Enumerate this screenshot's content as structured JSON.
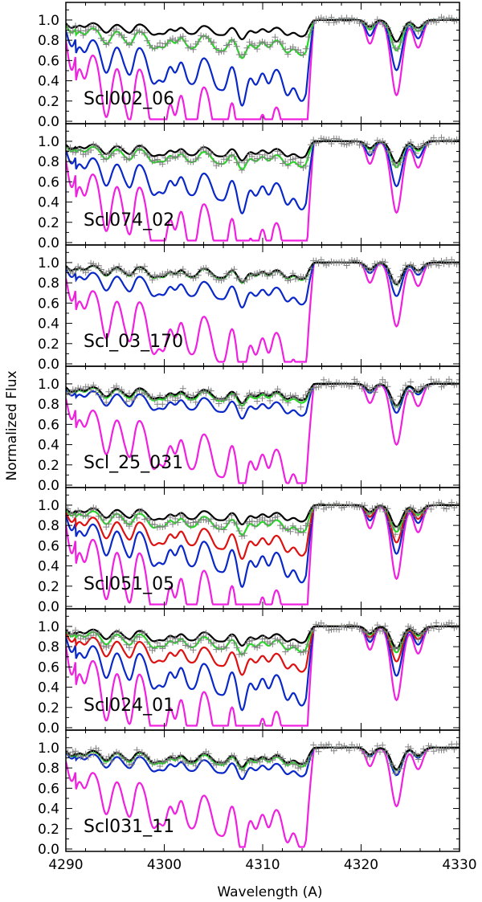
{
  "chart_data": {
    "type": "line",
    "xlabel": "Wavelength (A)",
    "ylabel": "Normalized Flux",
    "xlim": [
      4290,
      4330
    ],
    "ylim": [
      0.0,
      1.15
    ],
    "x_ticks": [
      "4290",
      "4300",
      "4310",
      "4320",
      "4330"
    ],
    "y_ticks": [
      "0.0",
      "0.2",
      "0.4",
      "0.6",
      "0.8",
      "1.0"
    ],
    "series_colors": {
      "observed": "#808080",
      "black": "#000000",
      "green": "#22dd22",
      "red": "#dd1111",
      "blue": "#0a28c8",
      "magenta": "#f020e0"
    },
    "panels": [
      {
        "label": "Scl002_06",
        "green": 0.82,
        "red": null,
        "blue": 0.56,
        "magenta": 0.23,
        "obs_scatter": 0.03
      },
      {
        "label": "Scl074_02",
        "green": 0.88,
        "red": null,
        "blue": 0.63,
        "magenta": 0.28,
        "obs_scatter": 0.04
      },
      {
        "label": "Scl_03_170",
        "green": 0.93,
        "red": null,
        "blue": 0.78,
        "magenta": 0.38,
        "obs_scatter": 0.03
      },
      {
        "label": "Scl_25_031",
        "green": 0.92,
        "red": null,
        "blue": 0.84,
        "magenta": 0.42,
        "obs_scatter": 0.05
      },
      {
        "label": "Scl051_05",
        "green": 0.87,
        "red": 0.73,
        "blue": 0.58,
        "magenta": 0.25,
        "obs_scatter": 0.04
      },
      {
        "label": "Scl024_01",
        "green": 0.88,
        "red": 0.76,
        "blue": 0.57,
        "magenta": 0.25,
        "obs_scatter": 0.04
      },
      {
        "label": "Scl031_11",
        "green": 0.92,
        "red": null,
        "blue": 0.86,
        "magenta": 0.45,
        "obs_scatter": 0.04
      }
    ]
  }
}
